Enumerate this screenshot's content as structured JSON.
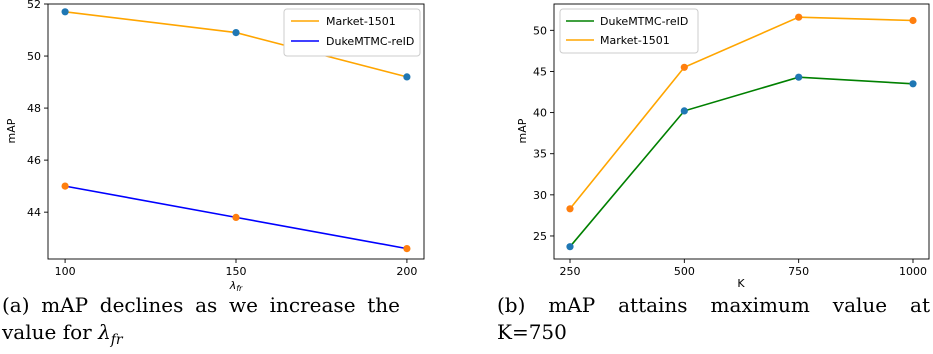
{
  "chart_data": [
    {
      "type": "line",
      "panel": "left",
      "x": [
        100,
        150,
        200
      ],
      "xticks": [
        "100",
        "150",
        "200"
      ],
      "yticks": [
        "42",
        "44",
        "46",
        "48",
        "50",
        "52"
      ],
      "xlabel": "λfr",
      "ylabel": "mAP",
      "xlim": [
        95,
        205
      ],
      "ylim": [
        42.2,
        52.0
      ],
      "grid": false,
      "legend_position": "top-right",
      "series": [
        {
          "name": "Market-1501",
          "color": "#ffa500",
          "values": [
            51.7,
            50.9,
            49.2
          ],
          "marker_color": "#1f77b4"
        },
        {
          "name": "DukeMTMC-reID",
          "color": "#0000ff",
          "values": [
            45.0,
            43.8,
            42.6
          ],
          "marker_color": "#ff7f0e"
        }
      ]
    },
    {
      "type": "line",
      "panel": "right",
      "x": [
        250,
        500,
        750,
        1000
      ],
      "xticks": [
        "250",
        "500",
        "750",
        "1000"
      ],
      "yticks": [
        "25",
        "30",
        "35",
        "40",
        "45",
        "50"
      ],
      "xlabel": "K",
      "ylabel": "mAP",
      "xlim": [
        215,
        1035
      ],
      "ylim": [
        22.2,
        53.2
      ],
      "grid": false,
      "legend_position": "top-left",
      "series": [
        {
          "name": "DukeMTMC-reID",
          "color": "#008000",
          "values": [
            23.7,
            40.2,
            44.3,
            43.5
          ],
          "marker_color": "#1f77b4"
        },
        {
          "name": "Market-1501",
          "color": "#ffa500",
          "values": [
            28.3,
            45.5,
            51.6,
            51.2
          ],
          "marker_color": "#ff7f0e"
        }
      ]
    }
  ],
  "captions": {
    "left": {
      "line1_words": [
        "(a)",
        "mAP",
        "declines",
        "as",
        "we",
        "increase",
        "the"
      ],
      "line2_text": "value for ",
      "line2_symbol": "λ",
      "line2_subscript": "fr"
    },
    "right": {
      "line1_words": [
        "(b)",
        "mAP",
        "attains",
        "maximum",
        "value",
        "at"
      ],
      "line2_text": "K=750"
    }
  }
}
